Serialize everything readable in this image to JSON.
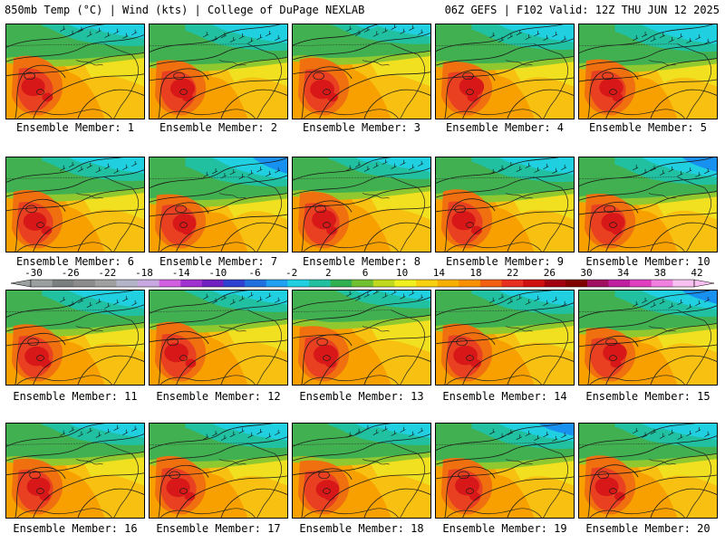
{
  "header": {
    "left": "850mb Temp (°C) | Wind (kts) | College of DuPage NEXLAB",
    "right": "06Z GEFS | F102 Valid: 12Z THU JUN 12 2025"
  },
  "members": [
    "Ensemble Member: 1",
    "Ensemble Member: 2",
    "Ensemble Member: 3",
    "Ensemble Member: 4",
    "Ensemble Member: 5",
    "Ensemble Member: 6",
    "Ensemble Member: 7",
    "Ensemble Member: 8",
    "Ensemble Member: 9",
    "Ensemble Member: 10",
    "Ensemble Member: 11",
    "Ensemble Member: 12",
    "Ensemble Member: 13",
    "Ensemble Member: 14",
    "Ensemble Member: 15",
    "Ensemble Member: 16",
    "Ensemble Member: 17",
    "Ensemble Member: 18",
    "Ensemble Member: 19",
    "Ensemble Member: 20"
  ],
  "colorbar": {
    "labels": [
      "-30",
      "-26",
      "-22",
      "-18",
      "-14",
      "-10",
      "-6",
      "-2",
      "2",
      "6",
      "10",
      "14",
      "18",
      "22",
      "26",
      "30",
      "34",
      "38",
      "42"
    ],
    "colors": [
      "#9aa0a0",
      "#7a8080",
      "#8c8c8c",
      "#a0a0a0",
      "#b4b4c8",
      "#c8a8e0",
      "#d060e0",
      "#a030d0",
      "#7020c0",
      "#3040d0",
      "#2070e0",
      "#20a0f0",
      "#20d0e0",
      "#20c0a0",
      "#30b050",
      "#70c030",
      "#c0d820",
      "#f0f020",
      "#f8d010",
      "#f8b000",
      "#f89000",
      "#f06010",
      "#e83020",
      "#d01010",
      "#a00010",
      "#800000",
      "#a01060",
      "#c020a0",
      "#e040c0",
      "#f080e0",
      "#f8c0f0"
    ]
  },
  "map": {
    "colors": {
      "cold_deep": "#1890f0",
      "cold": "#20d0e0",
      "cool": "#20c0a0",
      "mild": "#40b050",
      "lime": "#90c830",
      "yellow": "#f0e020",
      "gold": "#f8c010",
      "orange": "#f8a000",
      "dark_orange": "#f07010",
      "red_orange": "#e84020",
      "red": "#d81818"
    },
    "warmth": [
      0.55,
      0.62,
      0.6,
      0.65,
      0.58,
      0.5,
      0.52,
      0.6,
      0.56,
      0.54,
      0.6,
      0.58,
      0.62,
      0.6,
      0.57,
      0.52,
      0.55,
      0.5,
      0.6,
      0.54
    ],
    "cold_extent": [
      0.3,
      0.35,
      0.28,
      0.34,
      0.36,
      0.32,
      0.38,
      0.3,
      0.33,
      0.36,
      0.34,
      0.3,
      0.26,
      0.32,
      0.35,
      0.3,
      0.33,
      0.3,
      0.34,
      0.32
    ]
  }
}
